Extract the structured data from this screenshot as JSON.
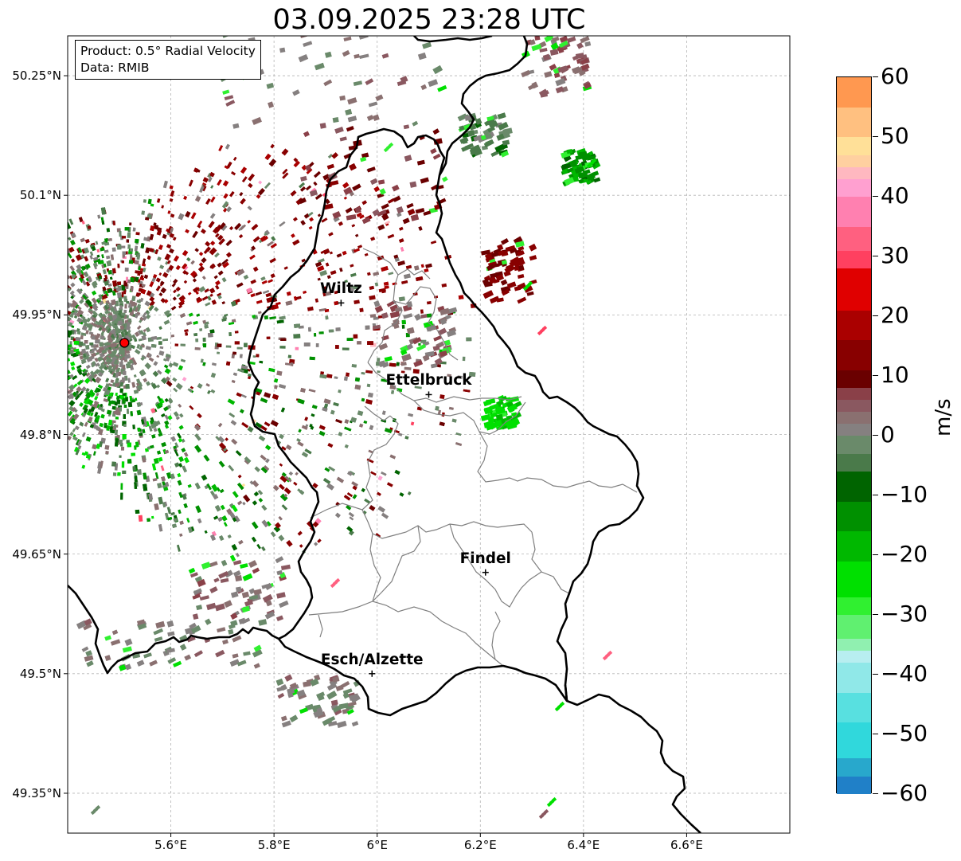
{
  "title": "03.09.2025 23:28 UTC",
  "info": {
    "product": "Product: 0.5° Radial Velocity",
    "data": "Data: RMIB"
  },
  "map": {
    "lon_range": [
      5.4,
      6.8
    ],
    "lat_range": [
      49.3,
      50.3
    ],
    "lat_labels": [
      "50.25°N",
      "50.1°N",
      "49.95°N",
      "49.8°N",
      "49.65°N",
      "49.5°N",
      "49.35°N"
    ],
    "lon_labels": [
      "5.6°E",
      "5.8°E",
      "6°E",
      "6.2°E",
      "6.4°E",
      "6.6°E"
    ],
    "gridlines": true,
    "radar_site": {
      "lon": 5.51,
      "lat": 49.915,
      "color": "#ff0000"
    },
    "cities": [
      {
        "name": "Wiltz",
        "lon": 5.93,
        "lat": 49.965
      },
      {
        "name": "Ettelbruck",
        "lon": 6.1,
        "lat": 49.85
      },
      {
        "name": "Findel",
        "lon": 6.21,
        "lat": 49.627
      },
      {
        "name": "Esch/Alzette",
        "lon": 5.99,
        "lat": 49.5
      }
    ]
  },
  "colorbar": {
    "label": "m/s",
    "min": -60,
    "max": 60,
    "ticks": [
      "60",
      "50",
      "40",
      "30",
      "20",
      "10",
      "0",
      "−10",
      "−20",
      "−30",
      "−40",
      "−50",
      "−60"
    ],
    "segments": [
      {
        "from": -60,
        "to": -57,
        "color": "#2080c8"
      },
      {
        "from": -57,
        "to": -54,
        "color": "#28a8cc"
      },
      {
        "from": -54,
        "to": -48,
        "color": "#30d8dc"
      },
      {
        "from": -48,
        "to": -43,
        "color": "#58e0e0"
      },
      {
        "from": -43,
        "to": -38,
        "color": "#90e8e8"
      },
      {
        "from": -38,
        "to": -36,
        "color": "#b8eef0"
      },
      {
        "from": -36,
        "to": -34,
        "color": "#90f0b0"
      },
      {
        "from": -34,
        "to": -30,
        "color": "#60f070"
      },
      {
        "from": -30,
        "to": -27,
        "color": "#30f030"
      },
      {
        "from": -27,
        "to": -21,
        "color": "#00e000"
      },
      {
        "from": -21,
        "to": -16,
        "color": "#00b800"
      },
      {
        "from": -16,
        "to": -11,
        "color": "#009000"
      },
      {
        "from": -11,
        "to": -6,
        "color": "#006400"
      },
      {
        "from": -6,
        "to": -3,
        "color": "#4a7a4a"
      },
      {
        "from": -3,
        "to": 0,
        "color": "#6a8a6a"
      },
      {
        "from": 0,
        "to": 2,
        "color": "#858080"
      },
      {
        "from": 2,
        "to": 4,
        "color": "#8a7070"
      },
      {
        "from": 4,
        "to": 6,
        "color": "#8a5860"
      },
      {
        "from": 6,
        "to": 8,
        "color": "#8a4048"
      },
      {
        "from": 8,
        "to": 11,
        "color": "#6a0000"
      },
      {
        "from": 11,
        "to": 16,
        "color": "#880000"
      },
      {
        "from": 16,
        "to": 21,
        "color": "#aa0000"
      },
      {
        "from": 21,
        "to": 28,
        "color": "#e00000"
      },
      {
        "from": 28,
        "to": 31,
        "color": "#ff4060"
      },
      {
        "from": 31,
        "to": 35,
        "color": "#ff6080"
      },
      {
        "from": 35,
        "to": 40,
        "color": "#ff80b0"
      },
      {
        "from": 40,
        "to": 43,
        "color": "#ffa0d0"
      },
      {
        "from": 43,
        "to": 45,
        "color": "#ffb8c0"
      },
      {
        "from": 45,
        "to": 47,
        "color": "#ffd0a0"
      },
      {
        "from": 47,
        "to": 50,
        "color": "#ffe098"
      },
      {
        "from": 50,
        "to": 55,
        "color": "#ffc080"
      },
      {
        "from": 55,
        "to": 60,
        "color": "#ff9850"
      }
    ]
  }
}
